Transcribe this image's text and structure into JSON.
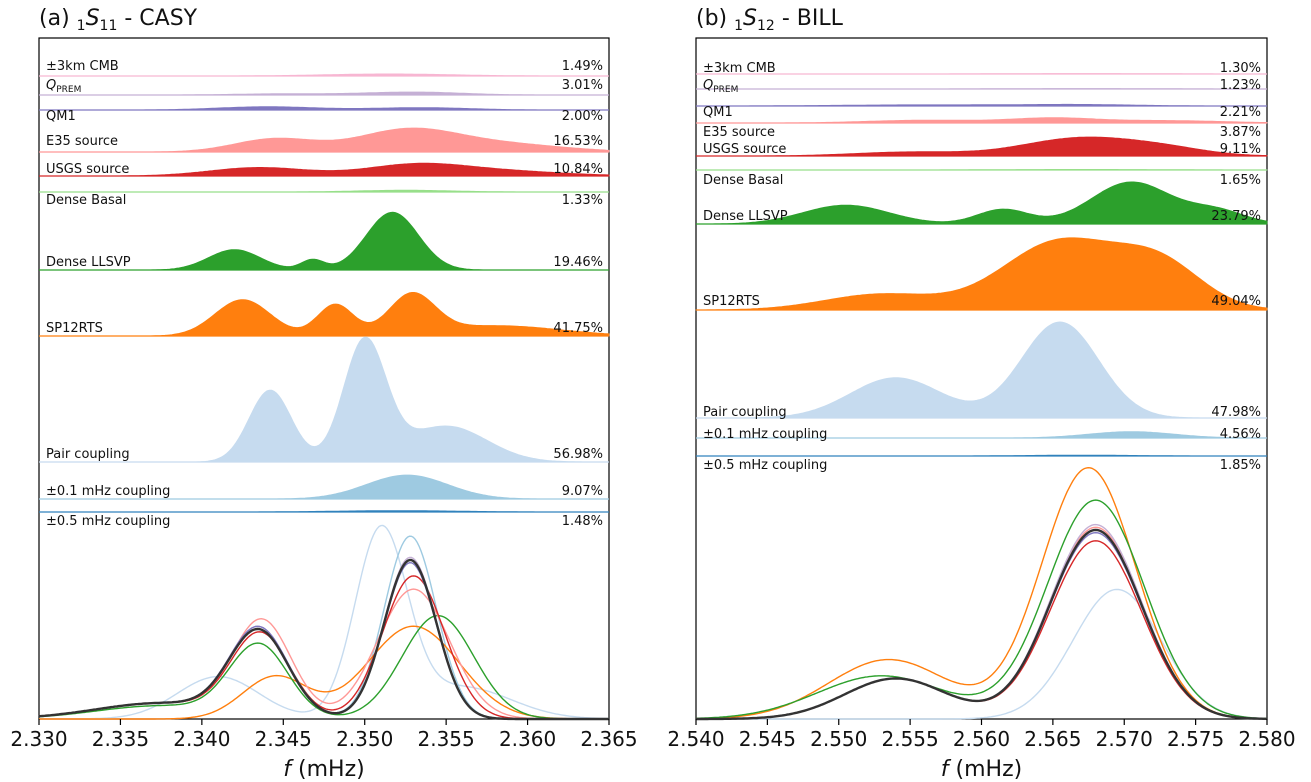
{
  "figure": {
    "x_unit_label": "(mHz)",
    "x_symbol": "f"
  },
  "chart_data": [
    {
      "type": "area",
      "panel": "a",
      "title": {
        "prefix": "(a)",
        "pre_sub": "1",
        "letter": "S",
        "post_sub": "11",
        "suffix": "- CASY"
      },
      "xlim": [
        2.33,
        2.365
      ],
      "xticks": [
        "2.330",
        "2.335",
        "2.340",
        "2.345",
        "2.350",
        "2.355",
        "2.360",
        "2.365"
      ],
      "ylabel": "",
      "grid": false,
      "legend_placement": "none",
      "sensitivity_rows": [
        {
          "name": "±3km CMB",
          "percent": "1.49%",
          "color": "#f7b6d2",
          "peaks": [
            [
              2.3515,
              0.35,
              0.004
            ]
          ]
        },
        {
          "name": "Q_PREM",
          "percent": "3.01%",
          "color": "#c5b0d5",
          "peaks": [
            [
              2.345,
              0.25,
              0.003
            ],
            [
              2.353,
              0.6,
              0.003
            ]
          ]
        },
        {
          "name": "QM1",
          "percent": "2.00%",
          "color": "#7f77c0",
          "peaks": [
            [
              2.344,
              0.55,
              0.003
            ],
            [
              2.3535,
              0.4,
              0.003
            ]
          ]
        },
        {
          "name": "E35 source",
          "percent": "16.53%",
          "color": "#ff9896",
          "peaks": [
            [
              2.3445,
              0.55,
              0.0025
            ],
            [
              2.3525,
              0.85,
              0.003
            ],
            [
              2.358,
              0.35,
              0.004
            ]
          ]
        },
        {
          "name": "USGS source",
          "percent": "10.84%",
          "color": "#d62728",
          "peaks": [
            [
              2.3435,
              0.5,
              0.003
            ],
            [
              2.353,
              0.6,
              0.003
            ],
            [
              2.358,
              0.3,
              0.004
            ]
          ]
        },
        {
          "name": "Dense Basal",
          "percent": "1.33%",
          "color": "#98df8a",
          "peaks": [
            [
              2.3525,
              0.45,
              0.003
            ]
          ]
        },
        {
          "name": "Dense LLSVP",
          "percent": "19.46%",
          "color": "#2ca02c",
          "peaks": [
            [
              2.342,
              0.3,
              0.0016
            ],
            [
              2.3468,
              0.15,
              0.0007
            ],
            [
              2.3517,
              0.85,
              0.0016
            ]
          ]
        },
        {
          "name": "SP12RTS",
          "percent": "41.75%",
          "color": "#ff7f0e",
          "peaks": [
            [
              2.3425,
              0.7,
              0.0017
            ],
            [
              2.3482,
              0.6,
              0.0011
            ],
            [
              2.3529,
              0.75,
              0.0014
            ],
            [
              2.358,
              0.2,
              0.004
            ]
          ]
        },
        {
          "name": "Pair coupling",
          "percent": "56.98%",
          "color": "#c6dbef",
          "peaks": [
            [
              2.3442,
              0.6,
              0.0013
            ],
            [
              2.35,
              1.0,
              0.0013
            ],
            [
              2.355,
              0.3,
              0.0025
            ]
          ]
        },
        {
          "name": "±0.1 mHz coupling",
          "percent": "9.07%",
          "color": "#9ecae1",
          "peaks": [
            [
              2.3526,
              0.8,
              0.0025
            ]
          ]
        },
        {
          "name": "±0.5 mHz coupling",
          "percent": "1.48%",
          "color": "#3182bd",
          "peaks": [
            [
              2.352,
              0.35,
              0.004
            ]
          ]
        }
      ],
      "spectra": [
        {
          "color": "#c6dbef",
          "width": 1.4,
          "peaks": [
            [
              2.341,
              0.16,
              0.0025
            ],
            [
              2.351,
              0.7,
              0.0016
            ],
            [
              2.356,
              0.12,
              0.003
            ]
          ]
        },
        {
          "color": "#9ecae1",
          "width": 1.4,
          "peaks": [
            [
              2.3435,
              0.32,
              0.0018
            ],
            [
              2.3528,
              0.69,
              0.0016
            ],
            [
              2.3375,
              0.06,
              0.004
            ]
          ]
        },
        {
          "color": "#ff7f0e",
          "width": 1.4,
          "peaks": [
            [
              2.3445,
              0.16,
              0.002
            ],
            [
              2.353,
              0.35,
              0.0028
            ]
          ]
        },
        {
          "color": "#2ca02c",
          "width": 1.4,
          "peaks": [
            [
              2.3435,
              0.27,
              0.0018
            ],
            [
              2.3545,
              0.39,
              0.0022
            ],
            [
              2.3375,
              0.05,
              0.004
            ]
          ]
        },
        {
          "color": "#ff9896",
          "width": 1.4,
          "peaks": [
            [
              2.3437,
              0.36,
              0.0018
            ],
            [
              2.353,
              0.49,
              0.0022
            ],
            [
              2.3375,
              0.06,
              0.004
            ]
          ]
        },
        {
          "color": "#d62728",
          "width": 1.4,
          "peaks": [
            [
              2.3436,
              0.31,
              0.0018
            ],
            [
              2.353,
              0.54,
              0.0019
            ],
            [
              2.3375,
              0.06,
              0.004
            ]
          ]
        },
        {
          "color": "#c5b0d5",
          "width": 1.4,
          "peaks": [
            [
              2.3435,
              0.33,
              0.0018
            ],
            [
              2.3528,
              0.61,
              0.0016
            ],
            [
              2.3375,
              0.06,
              0.004
            ]
          ]
        },
        {
          "color": "#7f77c0",
          "width": 1.4,
          "peaks": [
            [
              2.3435,
              0.33,
              0.0018
            ],
            [
              2.3528,
              0.59,
              0.0016
            ],
            [
              2.3375,
              0.06,
              0.004
            ]
          ]
        },
        {
          "color": "#333333",
          "width": 2.4,
          "peaks": [
            [
              2.3435,
              0.32,
              0.0018
            ],
            [
              2.3528,
              0.6,
              0.0016
            ],
            [
              2.3375,
              0.06,
              0.004
            ]
          ]
        }
      ]
    },
    {
      "type": "area",
      "panel": "b",
      "title": {
        "prefix": "(b)",
        "pre_sub": "1",
        "letter": "S",
        "post_sub": "12",
        "suffix": "- BILL"
      },
      "xlim": [
        2.54,
        2.58
      ],
      "xticks": [
        "2.540",
        "2.545",
        "2.550",
        "2.555",
        "2.560",
        "2.565",
        "2.570",
        "2.575",
        "2.580"
      ],
      "ylabel": "",
      "grid": false,
      "legend_placement": "none",
      "sensitivity_rows": [
        {
          "name": "±3km CMB",
          "percent": "1.30%",
          "color": "#f7b6d2",
          "peaks": [
            [
              2.567,
              0.25,
              0.006
            ]
          ]
        },
        {
          "name": "Q_PREM",
          "percent": "1.23%",
          "color": "#c5b0d5",
          "peaks": [
            [
              2.567,
              0.25,
              0.006
            ]
          ]
        },
        {
          "name": "QM1",
          "percent": "2.21%",
          "color": "#7f77c0",
          "peaks": [
            [
              2.556,
              0.3,
              0.006
            ],
            [
              2.567,
              0.35,
              0.004
            ]
          ]
        },
        {
          "name": "E35 source",
          "percent": "3.87%",
          "color": "#ff9896",
          "peaks": [
            [
              2.556,
              0.35,
              0.004
            ],
            [
              2.565,
              0.6,
              0.003
            ],
            [
              2.573,
              0.3,
              0.004
            ]
          ]
        },
        {
          "name": "USGS source",
          "percent": "9.11%",
          "color": "#d62728",
          "peaks": [
            [
              2.555,
              0.2,
              0.004
            ],
            [
              2.567,
              0.9,
              0.004
            ],
            [
              2.573,
              0.3,
              0.003
            ]
          ]
        },
        {
          "name": "Dense Basal",
          "percent": "1.65%",
          "color": "#98df8a",
          "peaks": [
            [
              2.567,
              0.3,
              0.006
            ]
          ]
        },
        {
          "name": "Dense LLSVP",
          "percent": "23.79%",
          "color": "#2ca02c",
          "peaks": [
            [
              2.5505,
              0.45,
              0.003
            ],
            [
              2.5615,
              0.35,
              0.0018
            ],
            [
              2.5705,
              1.0,
              0.0028
            ],
            [
              2.5765,
              0.3,
              0.002
            ]
          ]
        },
        {
          "name": "SP12RTS",
          "percent": "49.04%",
          "color": "#ff7f0e",
          "peaks": [
            [
              2.553,
              0.22,
              0.004
            ],
            [
              2.5655,
              0.95,
              0.004
            ],
            [
              2.5725,
              0.6,
              0.003
            ]
          ]
        },
        {
          "name": "Pair coupling",
          "percent": "47.98%",
          "color": "#c6dbef",
          "peaks": [
            [
              2.554,
              0.42,
              0.0032
            ],
            [
              2.5655,
              1.0,
              0.0027
            ]
          ]
        },
        {
          "name": "±0.1 mHz coupling",
          "percent": "4.56%",
          "color": "#9ecae1",
          "peaks": [
            [
              2.5705,
              0.8,
              0.003
            ]
          ]
        },
        {
          "name": "±0.5 mHz coupling",
          "percent": "1.85%",
          "color": "#3182bd",
          "peaks": [
            [
              2.567,
              0.3,
              0.004
            ]
          ]
        }
      ],
      "spectra": [
        {
          "color": "#c6dbef",
          "width": 1.4,
          "peaks": [
            [
              2.5695,
              0.48,
              0.0031
            ]
          ]
        },
        {
          "color": "#ff7f0e",
          "width": 1.4,
          "peaks": [
            [
              2.5535,
              0.22,
              0.0042
            ],
            [
              2.5675,
              0.93,
              0.0033
            ]
          ]
        },
        {
          "color": "#2ca02c",
          "width": 1.4,
          "peaks": [
            [
              2.553,
              0.16,
              0.0045
            ],
            [
              2.568,
              0.81,
              0.0034
            ]
          ]
        },
        {
          "color": "#ff9896",
          "width": 1.4,
          "peaks": [
            [
              2.554,
              0.15,
              0.0036
            ],
            [
              2.568,
              0.71,
              0.0032
            ]
          ]
        },
        {
          "color": "#d62728",
          "width": 1.4,
          "peaks": [
            [
              2.554,
              0.15,
              0.0036
            ],
            [
              2.568,
              0.66,
              0.0032
            ]
          ]
        },
        {
          "color": "#9ecae1",
          "width": 1.4,
          "peaks": [
            [
              2.554,
              0.15,
              0.0036
            ],
            [
              2.568,
              0.7,
              0.0032
            ]
          ]
        },
        {
          "color": "#c5b0d5",
          "width": 1.4,
          "peaks": [
            [
              2.554,
              0.15,
              0.0036
            ],
            [
              2.568,
              0.72,
              0.0032
            ]
          ]
        },
        {
          "color": "#7f77c0",
          "width": 1.4,
          "peaks": [
            [
              2.554,
              0.15,
              0.0036
            ],
            [
              2.568,
              0.69,
              0.0032
            ]
          ]
        },
        {
          "color": "#333333",
          "width": 2.4,
          "peaks": [
            [
              2.554,
              0.15,
              0.0036
            ],
            [
              2.568,
              0.7,
              0.0032
            ]
          ]
        }
      ]
    }
  ]
}
